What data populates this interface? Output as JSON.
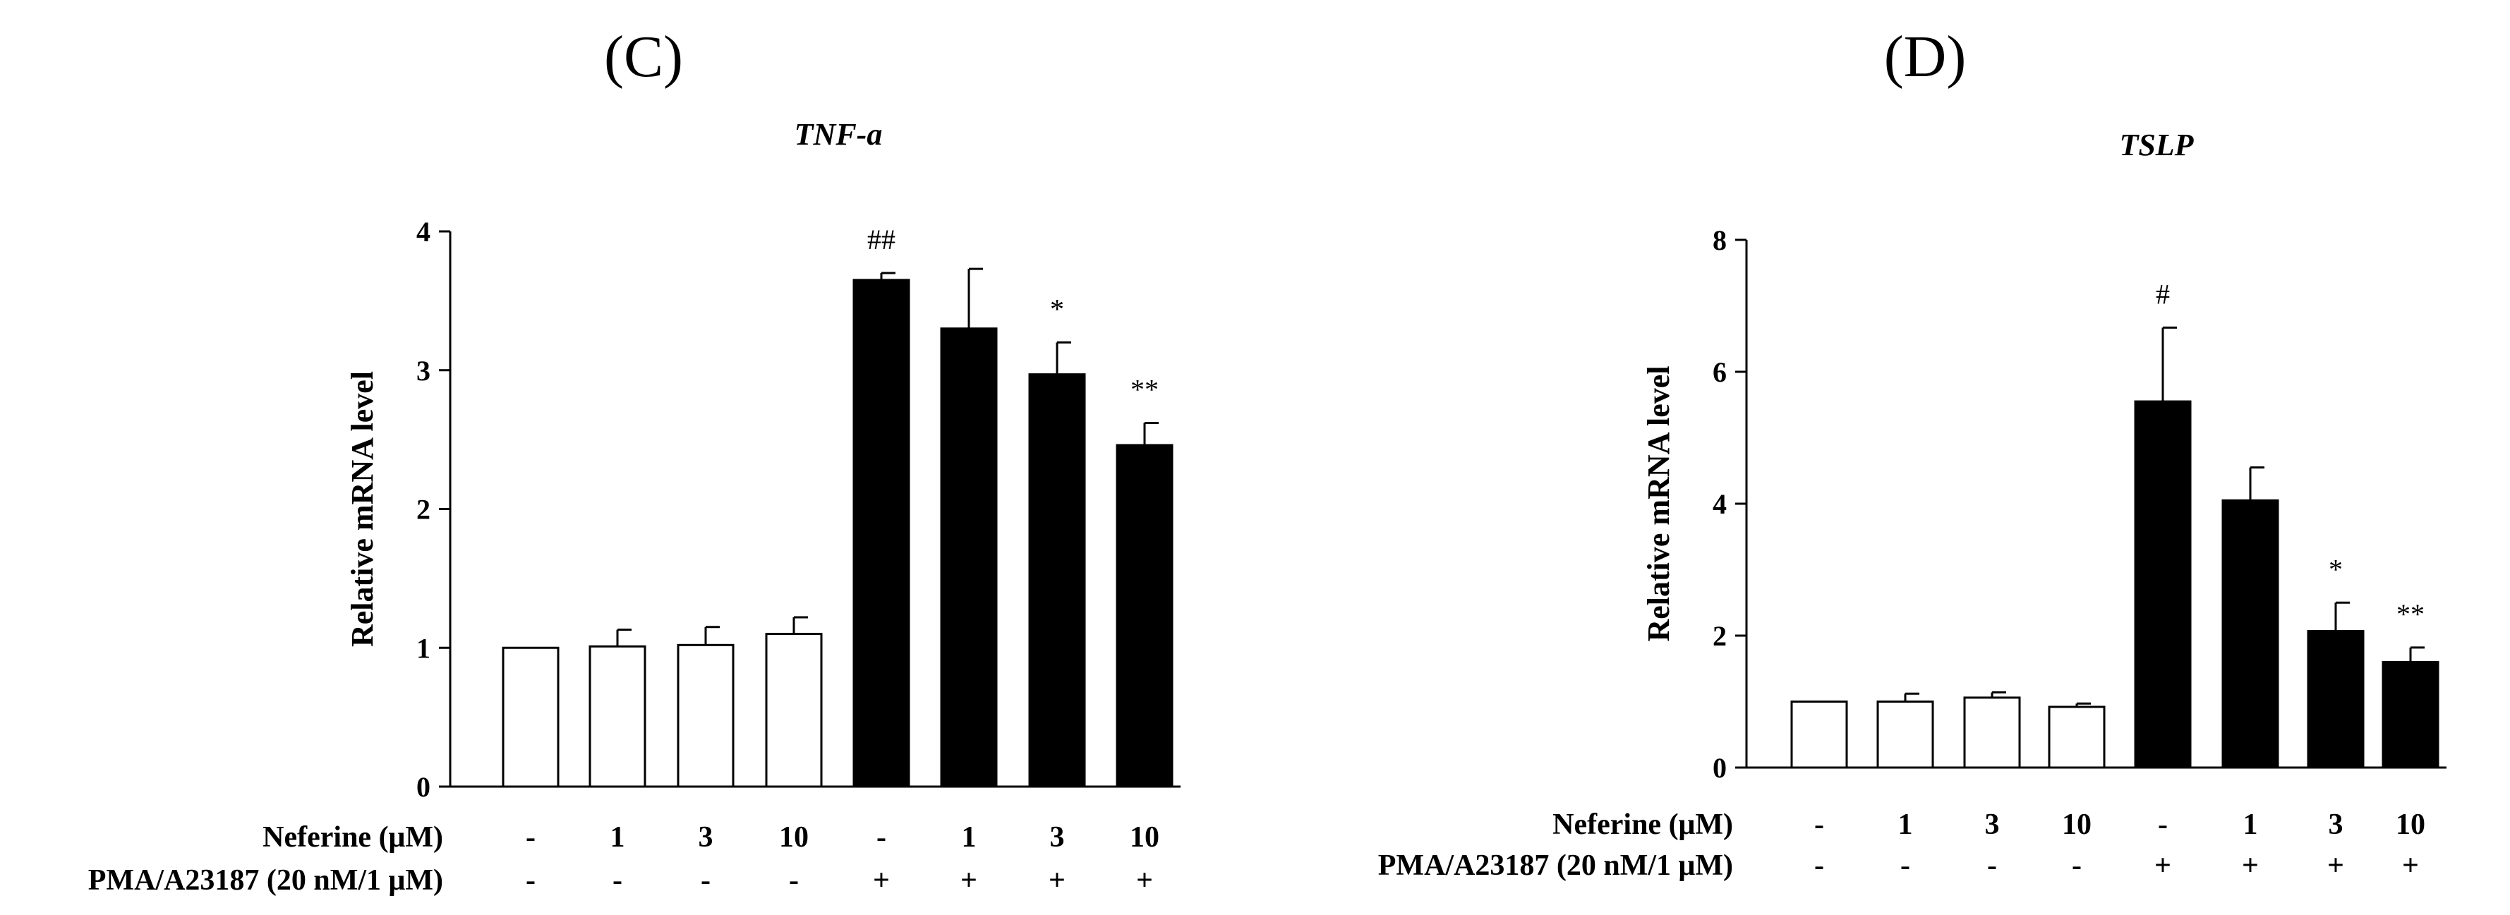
{
  "figure": {
    "panels": [
      {
        "label": "(C)"
      },
      {
        "label": "(D)"
      }
    ]
  },
  "treatment_rows": [
    {
      "label": "Neferine (μM)",
      "values": [
        "-",
        "1",
        "3",
        "10",
        "-",
        "1",
        "3",
        "10"
      ]
    },
    {
      "label": "PMA/A23187 (20 nM/1 μM)",
      "values": [
        "-",
        "-",
        "-",
        "-",
        "+",
        "+",
        "+",
        "+"
      ]
    }
  ],
  "colors": {
    "untreated_bar": "#ffffff",
    "treated_bar": "#000000",
    "outline": "#000000"
  },
  "chart_data": [
    {
      "type": "bar",
      "title": "TNF-a",
      "xlabel": "",
      "ylabel": "Relative mRNA level",
      "ylim": [
        0,
        4
      ],
      "yticks": [
        "0",
        "1",
        "2",
        "3",
        "4"
      ],
      "grid": false,
      "values": [
        1.0,
        1.01,
        1.02,
        1.1,
        3.65,
        3.3,
        2.97,
        2.46
      ],
      "errors": [
        0.0,
        0.12,
        0.13,
        0.12,
        0.05,
        0.43,
        0.23,
        0.16
      ],
      "bar_fill": [
        "white",
        "white",
        "white",
        "white",
        "black",
        "black",
        "black",
        "black"
      ],
      "annotations": [
        "",
        "",
        "",
        "",
        "##",
        "",
        "*",
        "**"
      ]
    },
    {
      "type": "bar",
      "title": "TSLP",
      "xlabel": "",
      "ylabel": "Relative mRNA level",
      "ylim": [
        0,
        8
      ],
      "yticks": [
        "0",
        "2",
        "4",
        "6",
        "8"
      ],
      "grid": false,
      "values": [
        1.0,
        1.0,
        1.06,
        0.92,
        5.55,
        4.05,
        2.07,
        1.6
      ],
      "errors": [
        0.0,
        0.12,
        0.08,
        0.05,
        1.12,
        0.5,
        0.43,
        0.22
      ],
      "bar_fill": [
        "white",
        "white",
        "white",
        "white",
        "black",
        "black",
        "black",
        "black"
      ],
      "annotations": [
        "#",
        "",
        "",
        "",
        "#",
        "",
        "*",
        "**"
      ]
    }
  ]
}
